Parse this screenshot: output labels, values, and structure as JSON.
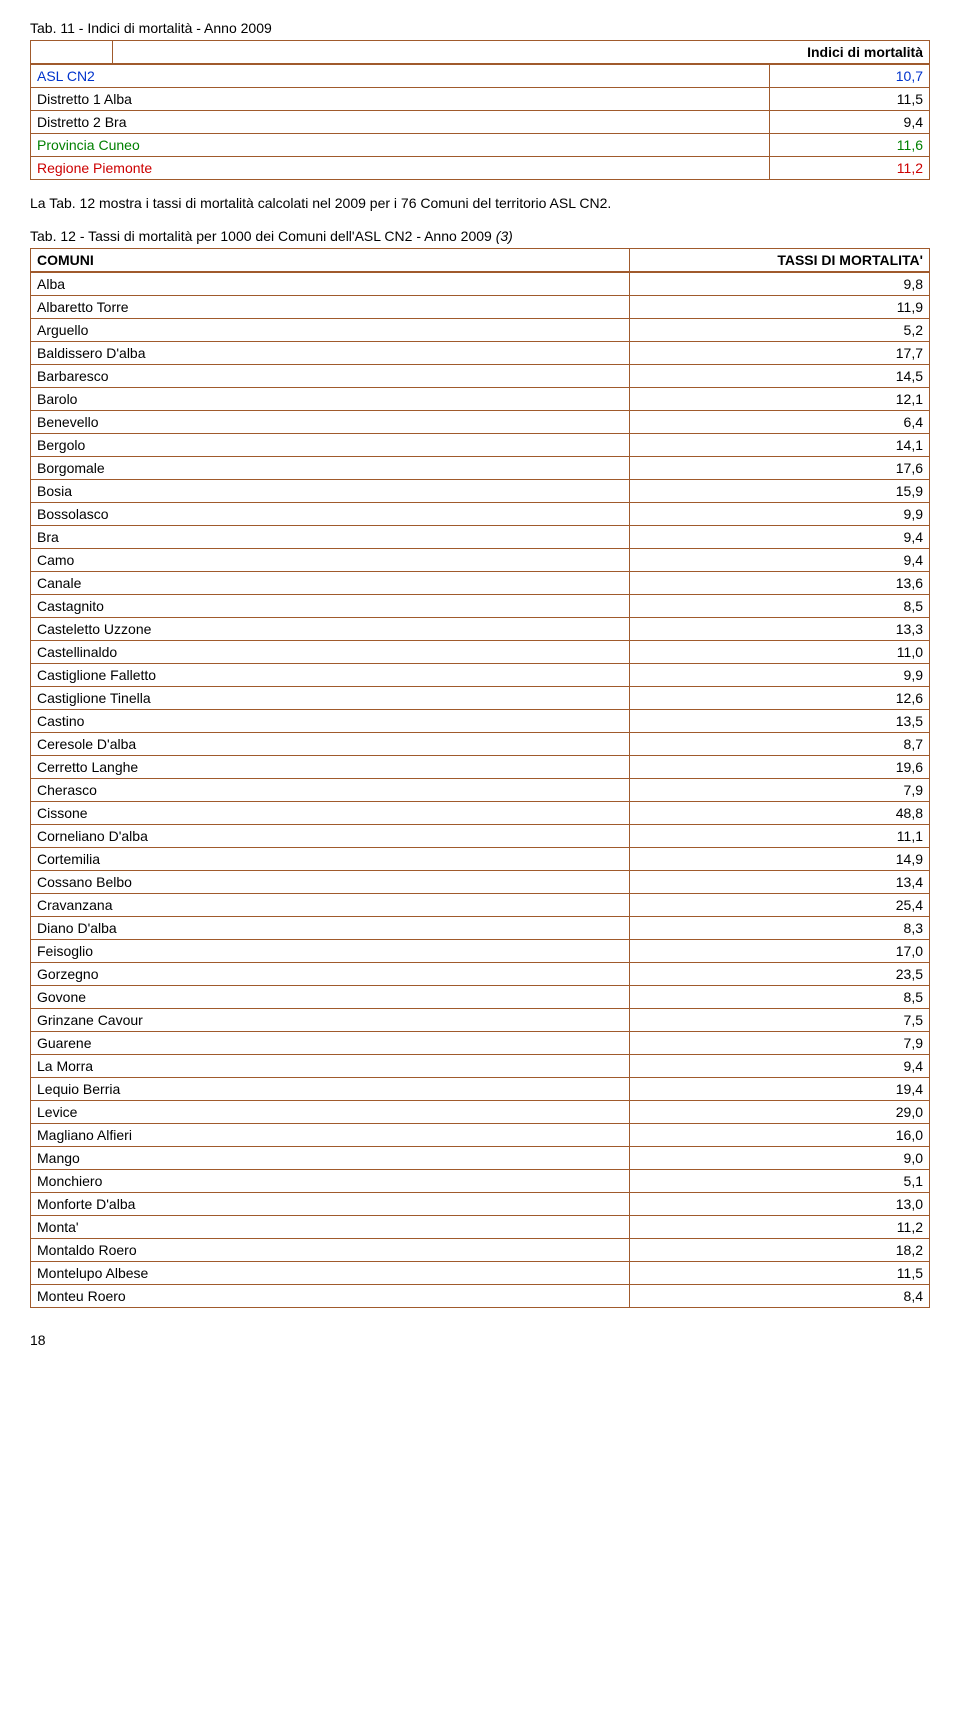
{
  "table11": {
    "title": "Tab. 11 - Indici di mortalità - Anno 2009",
    "header_right": "Indici di mortalità",
    "rows": [
      {
        "label": "ASL CN2",
        "value": "10,7",
        "color": "blue"
      },
      {
        "label": "Distretto 1 Alba",
        "value": "11,5",
        "color": ""
      },
      {
        "label": "Distretto 2 Bra",
        "value": "9,4",
        "color": ""
      },
      {
        "label": "Provincia Cuneo",
        "value": "11,6",
        "color": "green"
      },
      {
        "label": "Regione Piemonte",
        "value": "11,2",
        "color": "red"
      }
    ]
  },
  "paragraph": "La Tab. 12 mostra i tassi di mortalità calcolati nel 2009 per i 76 Comuni del territorio ASL CN2.",
  "table12": {
    "title": "Tab. 12 - Tassi di mortalità per 1000 dei Comuni dell'ASL CN2 - Anno 2009 (3)",
    "italic_suffix": "(3)",
    "columns": [
      "COMUNI",
      "TASSI DI MORTALITA'"
    ],
    "rows": [
      [
        "Alba",
        "9,8"
      ],
      [
        "Albaretto Torre",
        "11,9"
      ],
      [
        "Arguello",
        "5,2"
      ],
      [
        "Baldissero D'alba",
        "17,7"
      ],
      [
        "Barbaresco",
        "14,5"
      ],
      [
        "Barolo",
        "12,1"
      ],
      [
        "Benevello",
        "6,4"
      ],
      [
        "Bergolo",
        "14,1"
      ],
      [
        "Borgomale",
        "17,6"
      ],
      [
        "Bosia",
        "15,9"
      ],
      [
        "Bossolasco",
        "9,9"
      ],
      [
        "Bra",
        "9,4"
      ],
      [
        "Camo",
        "9,4"
      ],
      [
        "Canale",
        "13,6"
      ],
      [
        "Castagnito",
        "8,5"
      ],
      [
        "Casteletto Uzzone",
        "13,3"
      ],
      [
        "Castellinaldo",
        "11,0"
      ],
      [
        "Castiglione Falletto",
        "9,9"
      ],
      [
        "Castiglione Tinella",
        "12,6"
      ],
      [
        "Castino",
        "13,5"
      ],
      [
        "Ceresole D'alba",
        "8,7"
      ],
      [
        "Cerretto Langhe",
        "19,6"
      ],
      [
        "Cherasco",
        "7,9"
      ],
      [
        "Cissone",
        "48,8"
      ],
      [
        "Corneliano D'alba",
        "11,1"
      ],
      [
        "Cortemilia",
        "14,9"
      ],
      [
        "Cossano Belbo",
        "13,4"
      ],
      [
        "Cravanzana",
        "25,4"
      ],
      [
        "Diano D'alba",
        "8,3"
      ],
      [
        "Feisoglio",
        "17,0"
      ],
      [
        "Gorzegno",
        "23,5"
      ],
      [
        "Govone",
        "8,5"
      ],
      [
        "Grinzane Cavour",
        "7,5"
      ],
      [
        "Guarene",
        "7,9"
      ],
      [
        "La Morra",
        "9,4"
      ],
      [
        "Lequio Berria",
        "19,4"
      ],
      [
        "Levice",
        "29,0"
      ],
      [
        "Magliano Alfieri",
        "16,0"
      ],
      [
        "Mango",
        "9,0"
      ],
      [
        "Monchiero",
        "5,1"
      ],
      [
        "Monforte D'alba",
        "13,0"
      ],
      [
        "Monta'",
        "11,2"
      ],
      [
        "Montaldo Roero",
        "18,2"
      ],
      [
        "Montelupo Albese",
        "11,5"
      ],
      [
        "Monteu Roero",
        "8,4"
      ]
    ]
  },
  "page_number": "18"
}
